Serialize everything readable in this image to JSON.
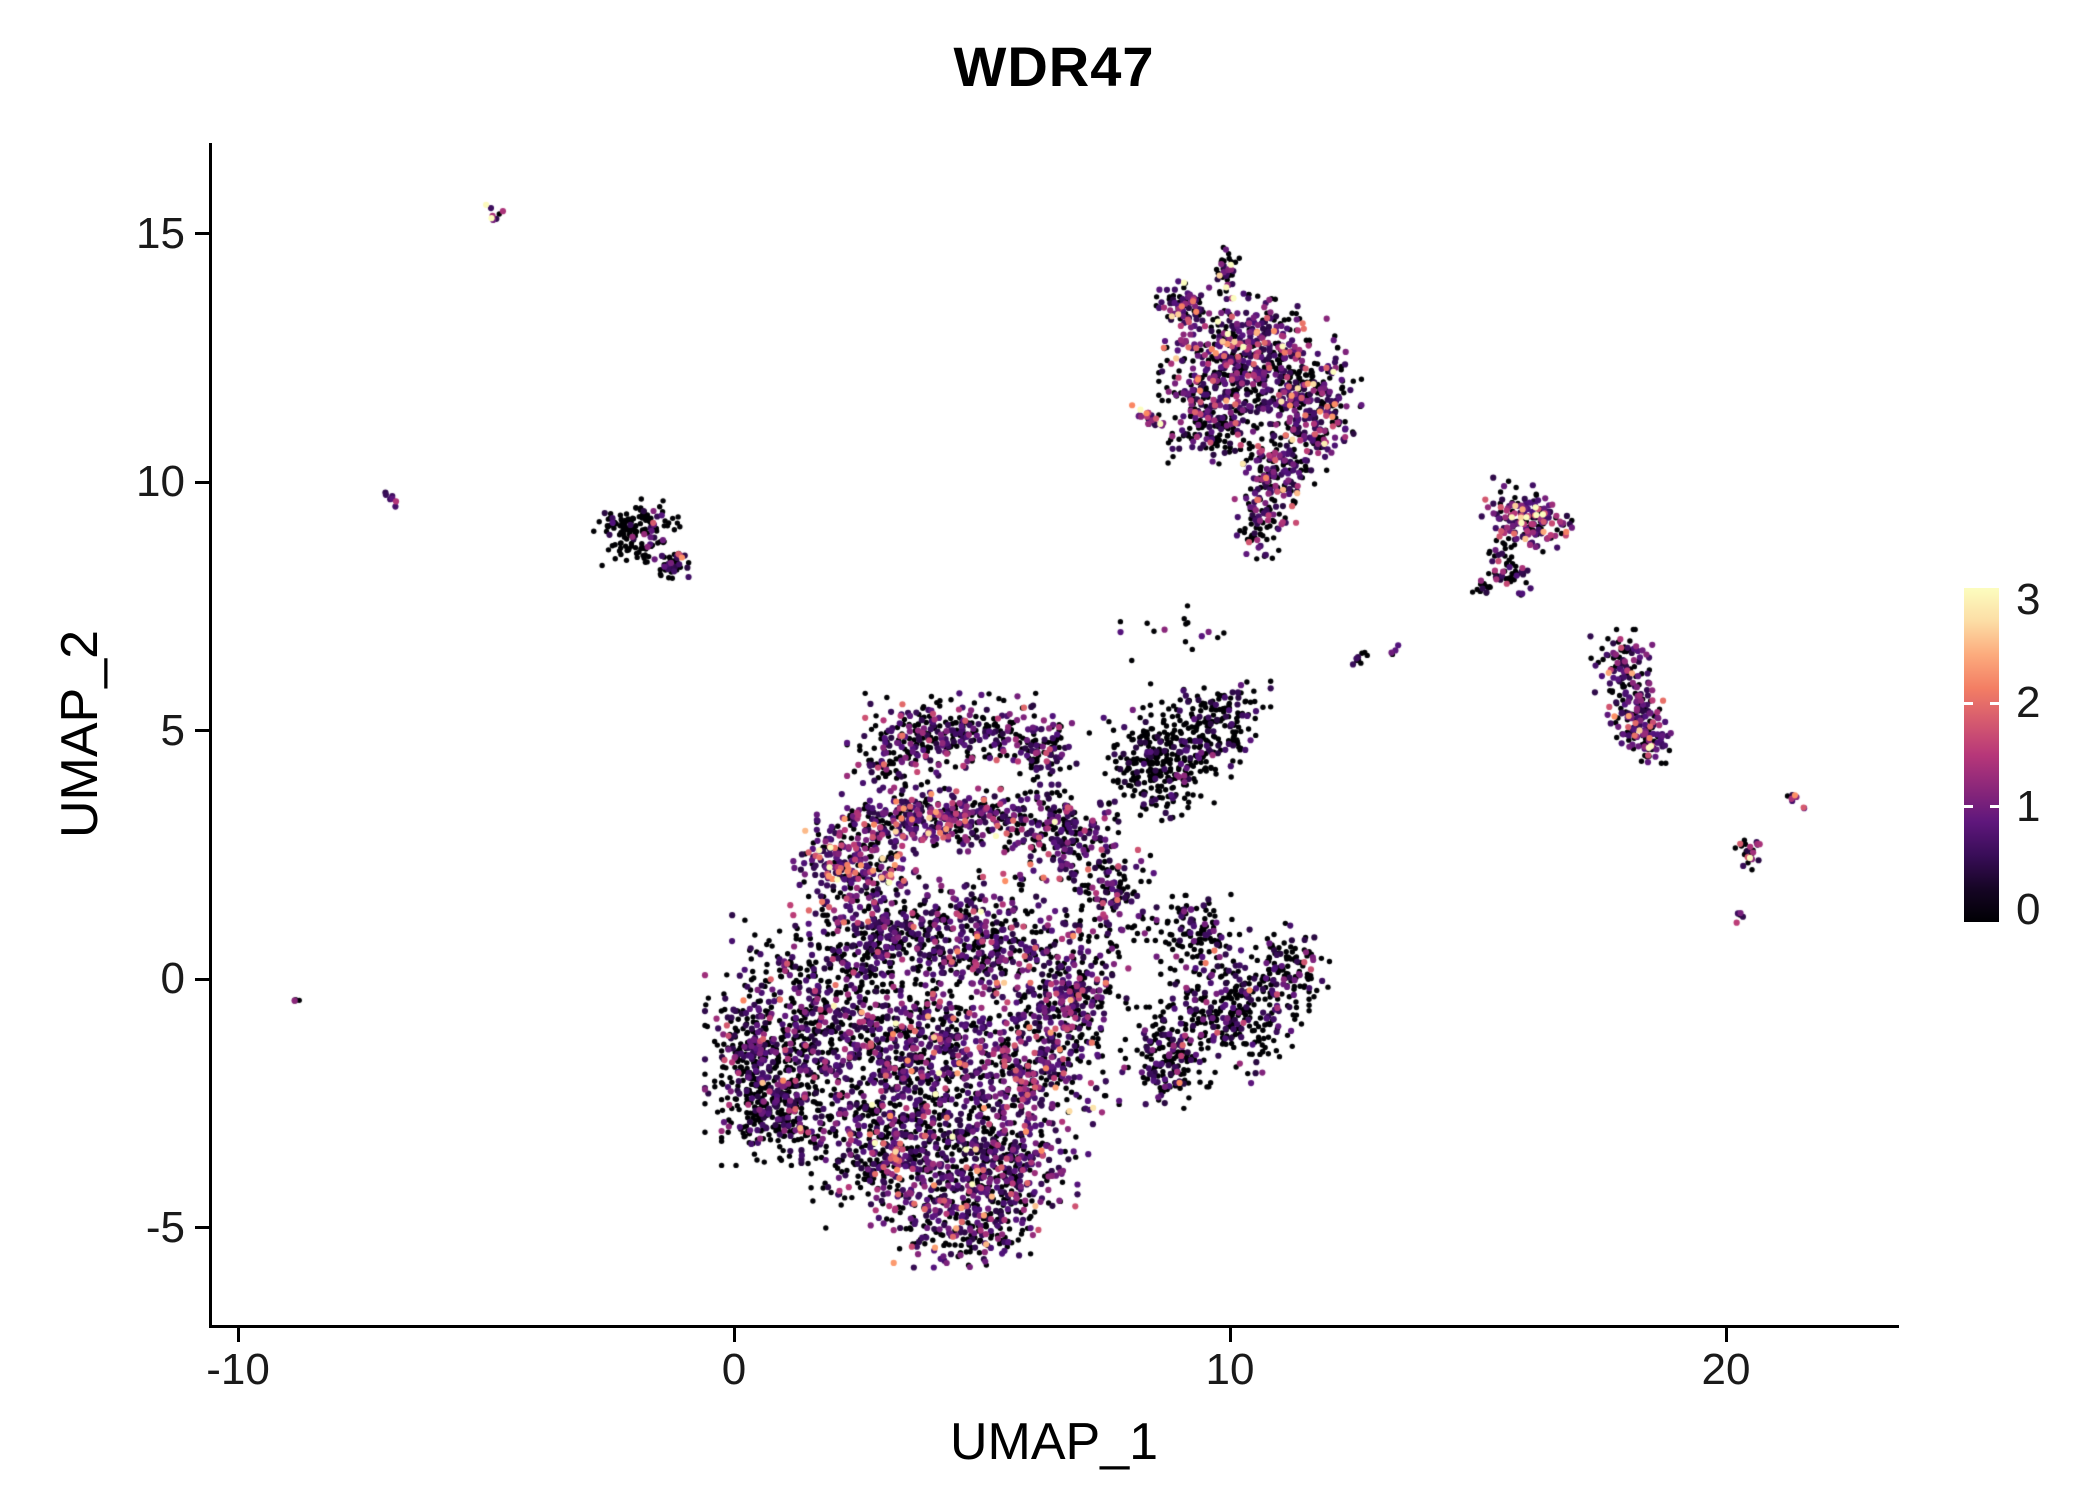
{
  "chart_data": {
    "type": "scatter",
    "title": "WDR47",
    "xlabel": "UMAP_1",
    "ylabel": "UMAP_2",
    "xlim": [
      -10.5,
      23.4
    ],
    "ylim": [
      -6.96,
      16.8
    ],
    "grid": false,
    "x_ticks": [
      {
        "v": -10,
        "label": "-10"
      },
      {
        "v": 0,
        "label": "0"
      },
      {
        "v": 10,
        "label": "10"
      },
      {
        "v": 20,
        "label": "20"
      }
    ],
    "y_ticks": [
      {
        "v": -5,
        "label": "-5"
      },
      {
        "v": 0,
        "label": "0"
      },
      {
        "v": 5,
        "label": "5"
      },
      {
        "v": 10,
        "label": "10"
      },
      {
        "v": 15,
        "label": "15"
      }
    ],
    "legend": {
      "position": "right",
      "vmin": 0,
      "vmax": 3,
      "ticks": [
        {
          "v": 0,
          "label": "0"
        },
        {
          "v": 1,
          "label": "1"
        },
        {
          "v": 2,
          "label": "2"
        },
        {
          "v": 3,
          "label": "3"
        }
      ],
      "colormap": "magma",
      "stops": [
        {
          "t": 0.0,
          "color": "#000004"
        },
        {
          "t": 0.25,
          "color": "#51127c"
        },
        {
          "t": 0.5,
          "color": "#b73779"
        },
        {
          "t": 0.75,
          "color": "#fc8961"
        },
        {
          "t": 1.0,
          "color": "#fcfdbf"
        }
      ]
    },
    "point_style": {
      "radius_zero": 2.7,
      "radius_expressed": 3.1,
      "zero_color": "#000004"
    },
    "seed": 20240512,
    "cluster_fields": [
      "cx",
      "cy",
      "rx",
      "ry",
      "angle_deg",
      "n",
      "zero_fraction",
      "expr_scale"
    ],
    "clusters": [
      [
        1.6,
        -0.9,
        1.9,
        1.9,
        0,
        650,
        0.55,
        0.85
      ],
      [
        0.3,
        -1.6,
        0.6,
        1.2,
        0,
        140,
        0.6,
        0.8
      ],
      [
        0.9,
        -2.6,
        1.0,
        1.0,
        0,
        280,
        0.7,
        0.7
      ],
      [
        3.2,
        -3.4,
        1.6,
        1.4,
        0,
        480,
        0.5,
        0.9
      ],
      [
        5.2,
        -3.8,
        1.5,
        1.3,
        0,
        430,
        0.45,
        1.0
      ],
      [
        4.6,
        -5.0,
        1.2,
        0.7,
        0,
        200,
        0.5,
        0.9
      ],
      [
        3.9,
        -1.5,
        1.6,
        1.4,
        0,
        480,
        0.45,
        0.9
      ],
      [
        6.0,
        -1.8,
        1.3,
        1.5,
        0,
        380,
        0.45,
        1.0
      ],
      [
        6.8,
        -0.3,
        1.0,
        1.2,
        0,
        240,
        0.5,
        0.9
      ],
      [
        5.0,
        0.8,
        1.6,
        1.2,
        0,
        380,
        0.5,
        0.9
      ],
      [
        3.0,
        0.9,
        1.3,
        1.0,
        0,
        280,
        0.55,
        0.8
      ],
      [
        2.4,
        2.3,
        1.1,
        0.8,
        0,
        240,
        0.3,
        1.3
      ],
      [
        4.2,
        3.2,
        2.2,
        0.55,
        0,
        430,
        0.35,
        1.1
      ],
      [
        6.6,
        2.9,
        1.0,
        0.8,
        0,
        190,
        0.5,
        0.9
      ],
      [
        4.6,
        5.0,
        1.7,
        0.65,
        0,
        260,
        0.55,
        0.8
      ],
      [
        3.2,
        4.4,
        0.8,
        0.7,
        0,
        110,
        0.5,
        0.8
      ],
      [
        6.1,
        4.6,
        0.7,
        0.6,
        0,
        90,
        0.55,
        0.8
      ],
      [
        7.6,
        1.6,
        0.8,
        1.0,
        0,
        140,
        0.55,
        0.8
      ],
      [
        8.7,
        4.4,
        1.3,
        1.0,
        15,
        360,
        0.82,
        0.45
      ],
      [
        9.9,
        5.3,
        0.8,
        0.6,
        0,
        110,
        0.82,
        0.45
      ],
      [
        10.1,
        -0.6,
        1.3,
        1.3,
        0,
        330,
        0.68,
        0.7
      ],
      [
        11.2,
        0.2,
        0.7,
        0.8,
        0,
        110,
        0.7,
        0.7
      ],
      [
        8.8,
        -1.6,
        0.9,
        0.9,
        0,
        170,
        0.6,
        0.8
      ],
      [
        9.3,
        0.9,
        0.7,
        0.7,
        0,
        100,
        0.7,
        0.6
      ],
      [
        9.0,
        6.8,
        1.5,
        0.9,
        0,
        18,
        0.75,
        0.5
      ],
      [
        10.4,
        12.6,
        1.5,
        1.0,
        -10,
        480,
        0.4,
        1.1
      ],
      [
        11.5,
        11.5,
        1.0,
        1.1,
        0,
        290,
        0.45,
        1.0
      ],
      [
        9.6,
        11.4,
        0.9,
        0.9,
        0,
        240,
        0.45,
        1.0
      ],
      [
        10.9,
        10.1,
        0.7,
        0.8,
        0,
        150,
        0.45,
        1.1
      ],
      [
        10.6,
        9.0,
        0.4,
        0.5,
        0,
        55,
        0.6,
        0.8
      ],
      [
        9.9,
        14.2,
        0.25,
        0.45,
        0,
        40,
        0.5,
        1.0
      ],
      [
        8.35,
        11.3,
        0.35,
        0.18,
        -30,
        22,
        0.12,
        2.2
      ],
      [
        9.0,
        13.6,
        0.5,
        0.4,
        0,
        80,
        0.35,
        1.3
      ],
      [
        -1.95,
        9.0,
        0.75,
        0.55,
        10,
        150,
        0.85,
        0.5
      ],
      [
        -1.25,
        8.35,
        0.35,
        0.25,
        0,
        40,
        0.55,
        1.0
      ],
      [
        -4.85,
        15.4,
        0.22,
        0.12,
        -25,
        8,
        0.1,
        1.8
      ],
      [
        -6.9,
        9.65,
        0.15,
        0.15,
        0,
        7,
        0.2,
        1.6
      ],
      [
        -8.8,
        -0.45,
        0.1,
        0.1,
        0,
        4,
        0.3,
        1.5
      ],
      [
        16.0,
        9.3,
        0.8,
        0.55,
        -20,
        170,
        0.3,
        1.5
      ],
      [
        15.6,
        8.3,
        0.4,
        0.5,
        0,
        55,
        0.5,
        0.9
      ],
      [
        15.1,
        7.9,
        0.2,
        0.2,
        0,
        14,
        0.6,
        0.8
      ],
      [
        17.9,
        6.4,
        0.55,
        0.55,
        0,
        85,
        0.45,
        1.0
      ],
      [
        18.2,
        5.3,
        0.5,
        0.8,
        10,
        130,
        0.4,
        1.1
      ],
      [
        18.5,
        4.8,
        0.4,
        0.4,
        0,
        55,
        0.45,
        1.0
      ],
      [
        20.4,
        2.6,
        0.3,
        0.35,
        0,
        24,
        0.35,
        1.2
      ],
      [
        21.45,
        3.55,
        0.3,
        0.12,
        -35,
        8,
        0.3,
        1.3
      ],
      [
        20.3,
        1.3,
        0.15,
        0.2,
        0,
        6,
        0.4,
        1.0
      ],
      [
        12.6,
        6.5,
        0.3,
        0.15,
        0,
        10,
        0.7,
        0.6
      ],
      [
        13.3,
        6.6,
        0.15,
        0.1,
        0,
        4,
        0.5,
        0.8
      ]
    ]
  }
}
